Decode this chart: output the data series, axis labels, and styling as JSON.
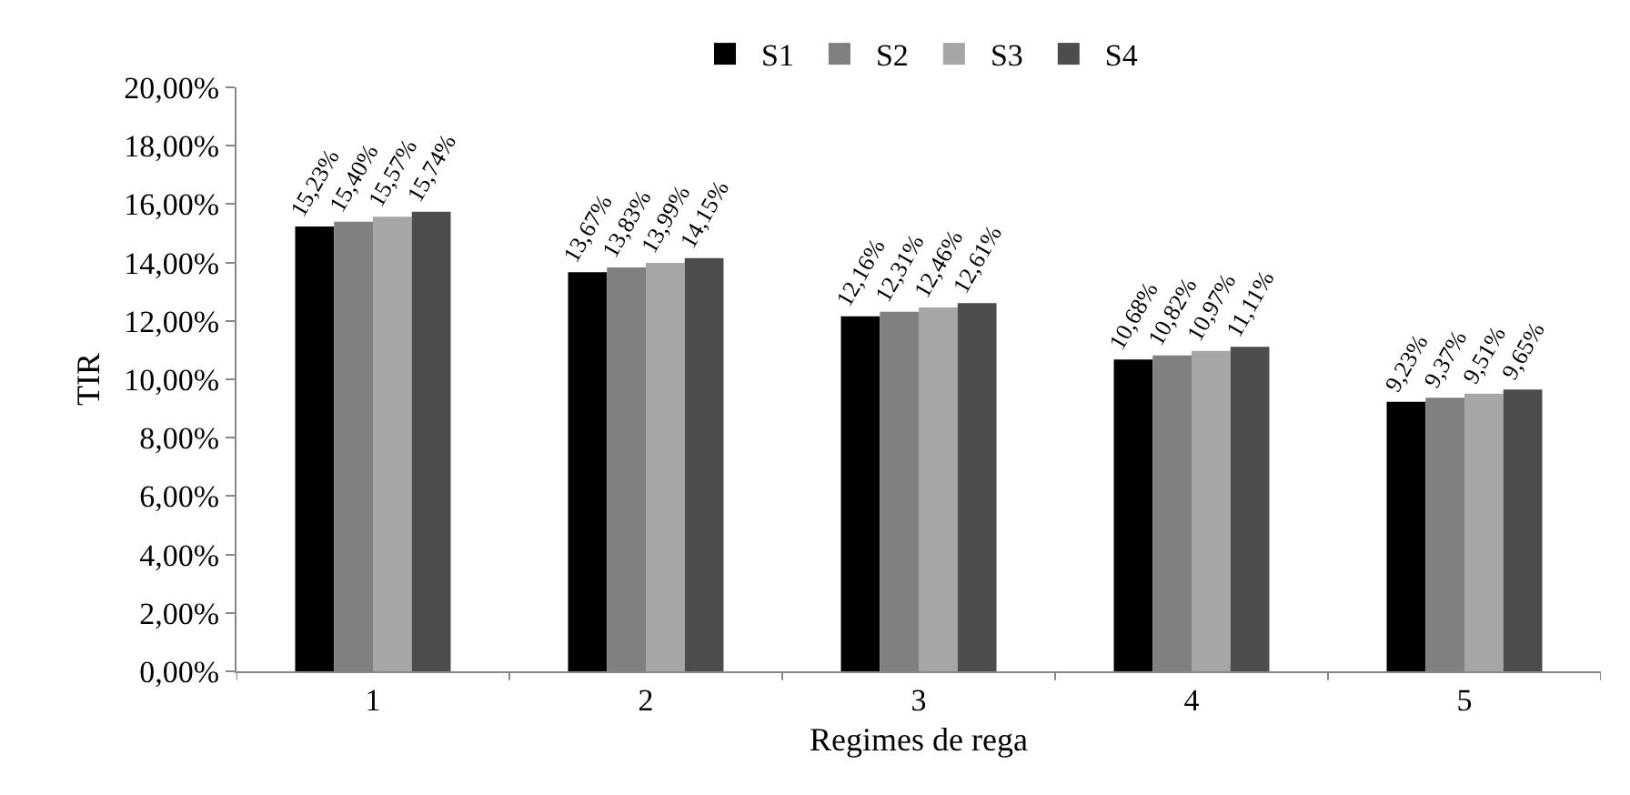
{
  "chart_data": {
    "type": "bar",
    "xlabel": "Regimes de rega",
    "ylabel": "TIR",
    "categories": [
      "1",
      "2",
      "3",
      "4",
      "5"
    ],
    "series": [
      {
        "name": "S1",
        "color": "#000000",
        "values": [
          15.23,
          13.67,
          12.16,
          10.68,
          9.23
        ],
        "value_labels": [
          "15,23%",
          "13,67%",
          "12,16%",
          "10,68%",
          "9,23%"
        ]
      },
      {
        "name": "S2",
        "color": "#808080",
        "values": [
          15.4,
          13.83,
          12.31,
          10.82,
          9.37
        ],
        "value_labels": [
          "15,40%",
          "13,83%",
          "12,31%",
          "10,82%",
          "9,37%"
        ]
      },
      {
        "name": "S3",
        "color": "#a6a6a6",
        "values": [
          15.57,
          13.99,
          12.46,
          10.97,
          9.51
        ],
        "value_labels": [
          "15,57%",
          "13,99%",
          "12,46%",
          "10,97%",
          "9,51%"
        ]
      },
      {
        "name": "S4",
        "color": "#4d4d4d",
        "values": [
          15.74,
          14.15,
          12.61,
          11.11,
          9.65
        ],
        "value_labels": [
          "15,74%",
          "14,15%",
          "12,61%",
          "11,11%",
          "9,65%"
        ]
      }
    ],
    "ylim": [
      0,
      20
    ],
    "yticks": [
      {
        "value": 0,
        "label": "0,00%"
      },
      {
        "value": 2,
        "label": "2,00%"
      },
      {
        "value": 4,
        "label": "4,00%"
      },
      {
        "value": 6,
        "label": "6,00%"
      },
      {
        "value": 8,
        "label": "8,00%"
      },
      {
        "value": 10,
        "label": "10,00%"
      },
      {
        "value": 12,
        "label": "12,00%"
      },
      {
        "value": 14,
        "label": "14,00%"
      },
      {
        "value": 16,
        "label": "16,00%"
      },
      {
        "value": 18,
        "label": "18,00%"
      },
      {
        "value": 20,
        "label": "20,00%"
      }
    ],
    "grid": false,
    "legend": "top"
  }
}
